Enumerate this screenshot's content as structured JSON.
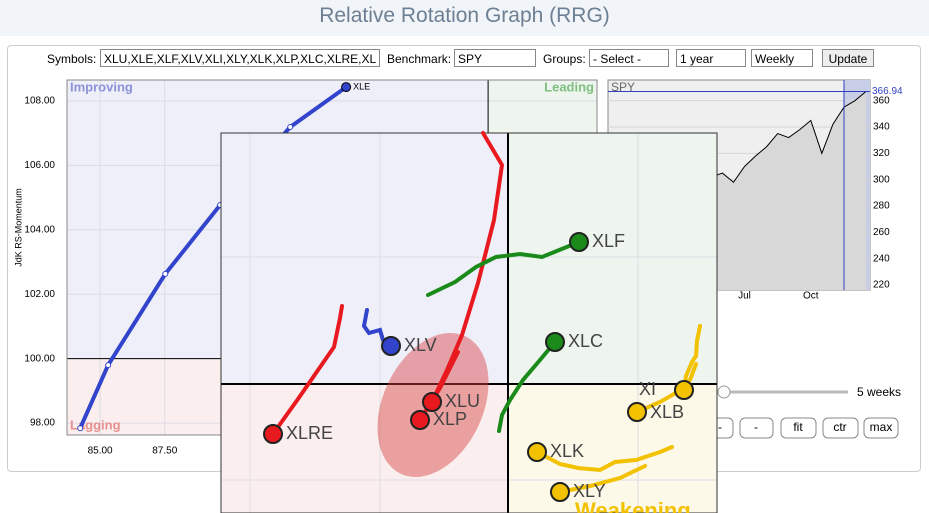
{
  "header": {
    "title": "Relative Rotation Graph (RRG)"
  },
  "form": {
    "symbols_label": "Symbols:",
    "symbols": "XLU,XLE,XLF,XLV,XLI,XLY,XLK,XLP,XLC,XLRE,XL",
    "benchmark_label": "Benchmark:",
    "benchmark": "SPY",
    "groups_label": "Groups:",
    "groups": "- Select -",
    "period": "1 year",
    "frequency": "Weekly",
    "update": "Update"
  },
  "chart_data": [
    {
      "type": "line",
      "y_label": "JdK RS-Momentum",
      "quadrants": [
        "Improving",
        "Leading",
        "Lagging"
      ],
      "xlim": [
        83.72,
        104.21
      ],
      "ylim": [
        97.63,
        108.65
      ],
      "xticks": [
        {
          "value": 85,
          "label": "85.00"
        },
        {
          "value": 87.5,
          "label": "87.50"
        }
      ],
      "yticks": [
        {
          "value": 98,
          "label": "98.00"
        },
        {
          "value": 100,
          "label": "100.00"
        },
        {
          "value": 102,
          "label": "102.00"
        },
        {
          "value": 104,
          "label": "104.00"
        },
        {
          "value": 106,
          "label": "106.00"
        },
        {
          "value": 108,
          "label": "108.00"
        }
      ],
      "center": [
        100,
        100
      ],
      "grid": true,
      "series": [
        {
          "name": "XLE",
          "color": "#3344cc",
          "x": [
            84.23,
            85.31,
            87.52,
            89.64,
            92.35,
            94.51
          ],
          "values": [
            97.84,
            99.8,
            102.63,
            104.77,
            107.19,
            108.43
          ]
        }
      ]
    },
    {
      "type": "line",
      "title": "SPY",
      "ylim": [
        216.2,
        375.7
      ],
      "yticks": [
        220,
        240,
        260,
        280,
        300,
        320,
        340,
        360
      ],
      "grid": true,
      "categories": [
        null,
        null,
        null,
        null,
        null,
        null,
        null,
        null,
        null,
        null,
        null,
        null,
        "Jul",
        null,
        null,
        null,
        null,
        null,
        "Oct",
        null,
        null,
        null,
        null,
        null
      ],
      "series": [
        {
          "color": "#000000",
          "values": [
            262,
            258,
            265,
            270,
            275,
            268,
            280,
            290,
            300,
            302,
            305,
            298,
            310,
            318,
            325,
            335,
            332,
            338,
            345,
            320,
            342,
            355,
            360,
            366.94
          ]
        }
      ],
      "last_label": "366.94"
    }
  ],
  "inset": {
    "labels": [
      "XLF",
      "XLC",
      "XLV",
      "XLU",
      "XLP",
      "XLRE",
      "XLK",
      "XLY",
      "XLB",
      "XI"
    ],
    "quadrant": "Weakening"
  },
  "controls": {
    "tail": "5 weeks",
    "buttons": [
      "-",
      "-",
      "fit",
      "ctr",
      "max"
    ]
  }
}
